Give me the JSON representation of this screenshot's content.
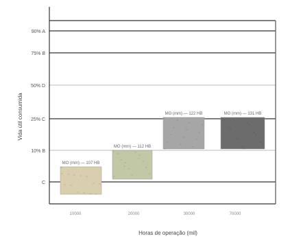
{
  "chart_data": {
    "type": "table",
    "title": "",
    "xlabel": "Horas de operação (mil)",
    "ylabel": "Vida útil consumida",
    "y_ticks": [
      {
        "label": "90% A"
      },
      {
        "label": "75% B"
      },
      {
        "label": "50% D"
      },
      {
        "label": "25% C"
      },
      {
        "label": "10% B"
      },
      {
        "label": "C"
      }
    ],
    "x_ticks": [
      "10000",
      "20000",
      "30000",
      "70000"
    ],
    "samples": [
      {
        "label": "MO (mm) — 107 HB",
        "tone": "#d9cfae",
        "x_center": 118,
        "y_center": 263
      },
      {
        "label": "MO (mm) — 112 HB",
        "tone": "#c2c7a5",
        "x_center": 193,
        "y_center": 240
      },
      {
        "label": "MO (mm) — 122 HB",
        "tone": "#a6a6a6",
        "x_center": 268,
        "y_center": 194
      },
      {
        "label": "MO (mm) — 131 HB",
        "tone": "#6c6c6c",
        "x_center": 354,
        "y_center": 194
      }
    ]
  }
}
